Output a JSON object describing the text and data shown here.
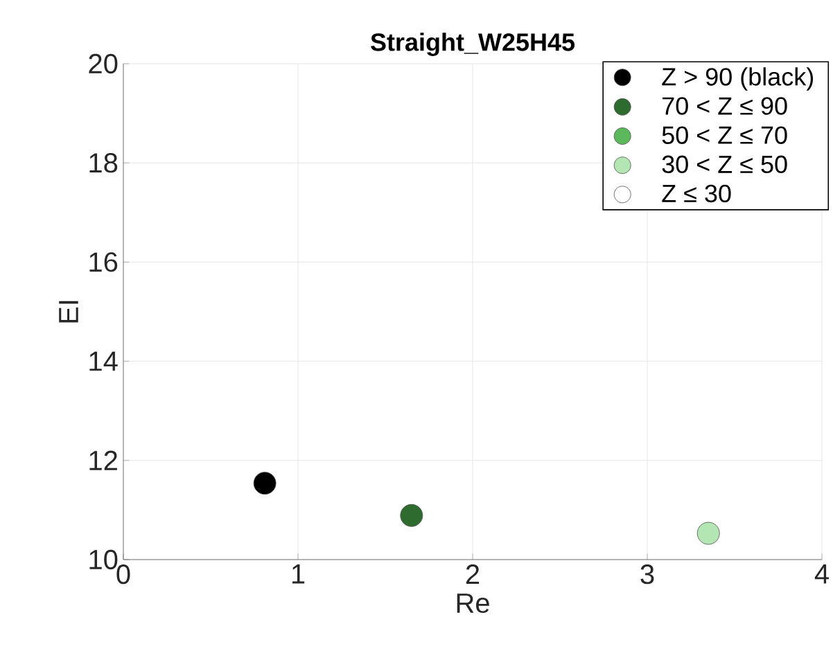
{
  "chart_data": {
    "type": "scatter",
    "title": "Straight_W25H45",
    "xlabel": "Re",
    "ylabel": "EI",
    "xlim": [
      0,
      4
    ],
    "ylim": [
      10,
      20
    ],
    "xticks": [
      0,
      1,
      2,
      3,
      4
    ],
    "yticks": [
      10,
      12,
      14,
      16,
      18,
      20
    ],
    "grid": true,
    "legend": "top right",
    "series": [
      {
        "name": "Z > 90 (black)",
        "color": "#000000",
        "x": [
          0.81
        ],
        "values": [
          11.54
        ]
      },
      {
        "name": "70 < Z ≤ 90",
        "color": "#2e6b2e",
        "x": [
          1.65
        ],
        "values": [
          10.89
        ]
      },
      {
        "name": "50 < Z ≤ 70",
        "color": "#5cb85c"
      },
      {
        "name": "30 < Z ≤ 50",
        "color": "#b3e6b3",
        "x": [
          3.35
        ],
        "values": [
          10.53
        ]
      },
      {
        "name": "Z ≤ 30",
        "color": "#ffffff"
      }
    ]
  }
}
